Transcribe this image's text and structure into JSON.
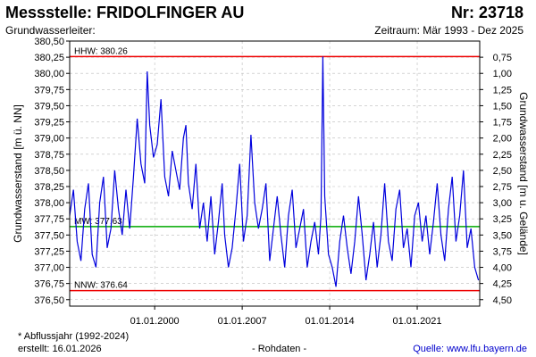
{
  "header": {
    "title": "Messstelle: FRIDOLFINGER AU",
    "nr": "Nr: 23718",
    "aquifer": "Grundwasserleiter:",
    "period": "Zeitraum: Mär 1993 - Dez 2025"
  },
  "footer": {
    "note": "* Abflussjahr (1992-2024)",
    "created": "erstellt:  16.01.2026",
    "raw": "- Rohdaten -",
    "source_label": "Quelle:",
    "source_link": "www.lfu.bayern.de"
  },
  "colors": {
    "series": "#0000dd",
    "hhw": "#ee0000",
    "mw": "#00aa00",
    "nnw": "#ee0000",
    "grid": "#bbbbbb"
  },
  "chart_data": {
    "type": "line",
    "title": "",
    "ylabel": "Grundwasserstand [m ü. NN]",
    "y2label": "Grundwasserstand [m u. Gelände]",
    "ylim": [
      376.4,
      380.5
    ],
    "xlim": [
      1993.2,
      2026.0
    ],
    "grid": true,
    "yticks": [
      376.5,
      376.75,
      377.0,
      377.25,
      377.5,
      377.75,
      378.0,
      378.25,
      378.5,
      378.75,
      379.0,
      379.25,
      379.5,
      379.75,
      380.0,
      380.25,
      380.5
    ],
    "ytick_labels": [
      "376,50",
      "376,75",
      "377,00",
      "377,25",
      "377,50",
      "377,75",
      "378,00",
      "378,25",
      "378,50",
      "378,75",
      "379,00",
      "379,25",
      "379,50",
      "379,75",
      "380,00",
      "380,25",
      "380,50"
    ],
    "y2ticks": [
      4.5,
      4.25,
      4.0,
      3.75,
      3.5,
      3.25,
      3.0,
      2.75,
      2.5,
      2.25,
      2.0,
      1.75,
      1.5,
      1.25,
      1.0,
      0.75
    ],
    "y2tick_labels": [
      "4,50",
      "4,25",
      "4,00",
      "3,75",
      "3,50",
      "3,25",
      "3,00",
      "2,75",
      "2,50",
      "2,25",
      "2,00",
      "1,75",
      "1,50",
      "1,25",
      "1,00",
      "0,75"
    ],
    "y2_offset": 381.0,
    "xticks": [
      2000.0,
      2007.0,
      2014.0,
      2021.0
    ],
    "xtick_labels": [
      "01.01.2000",
      "01.01.2007",
      "01.01.2014",
      "01.01.2021"
    ],
    "reference_lines": [
      {
        "name": "HHW",
        "label": "HHW: 380.26",
        "value": 380.26
      },
      {
        "name": "MW",
        "label": "MW: 377.63",
        "value": 377.63
      },
      {
        "name": "NNW",
        "label": "NNW: 376.64",
        "value": 376.64
      }
    ],
    "series": [
      {
        "x": [
          1993.2,
          1993.5,
          1993.8,
          1994.1,
          1994.4,
          1994.7,
          1995.0,
          1995.3,
          1995.6,
          1995.9,
          1996.2,
          1996.5,
          1996.8,
          1997.1,
          1997.4,
          1997.7,
          1998.0,
          1998.3,
          1998.6,
          1998.9,
          1999.2,
          1999.4,
          1999.6,
          1999.9,
          2000.2,
          2000.5,
          2000.8,
          2001.1,
          2001.4,
          2001.7,
          2002.0,
          2002.3,
          2002.5,
          2002.7,
          2003.0,
          2003.3,
          2003.6,
          2003.9,
          2004.2,
          2004.5,
          2004.8,
          2005.1,
          2005.4,
          2005.6,
          2005.9,
          2006.2,
          2006.5,
          2006.8,
          2007.1,
          2007.4,
          2007.7,
          2008.0,
          2008.3,
          2008.6,
          2008.9,
          2009.2,
          2009.5,
          2009.8,
          2010.1,
          2010.4,
          2010.7,
          2011.0,
          2011.3,
          2011.6,
          2011.9,
          2012.2,
          2012.5,
          2012.8,
          2013.1,
          2013.3,
          2013.45,
          2013.6,
          2013.9,
          2014.2,
          2014.5,
          2014.8,
          2015.1,
          2015.4,
          2015.7,
          2016.0,
          2016.3,
          2016.6,
          2016.9,
          2017.2,
          2017.5,
          2017.8,
          2018.1,
          2018.4,
          2018.7,
          2019.0,
          2019.3,
          2019.6,
          2019.9,
          2020.2,
          2020.5,
          2020.8,
          2021.1,
          2021.4,
          2021.7,
          2022.0,
          2022.3,
          2022.6,
          2022.9,
          2023.2,
          2023.5,
          2023.8,
          2024.1,
          2024.4,
          2024.7,
          2025.0,
          2025.3,
          2025.6,
          2025.9
        ],
        "y": [
          377.8,
          378.2,
          377.4,
          377.1,
          377.9,
          378.3,
          377.2,
          377.0,
          378.0,
          378.4,
          377.3,
          377.6,
          378.5,
          377.9,
          377.5,
          378.2,
          377.6,
          378.4,
          379.3,
          378.6,
          378.3,
          380.03,
          379.2,
          378.7,
          378.9,
          379.6,
          378.4,
          378.1,
          378.8,
          378.5,
          378.2,
          379.0,
          379.2,
          378.3,
          377.9,
          378.6,
          377.6,
          378.0,
          377.4,
          378.1,
          377.2,
          377.7,
          378.3,
          377.5,
          377.0,
          377.3,
          377.9,
          378.6,
          377.4,
          377.8,
          379.05,
          378.0,
          377.6,
          377.9,
          378.3,
          377.1,
          377.6,
          378.1,
          377.5,
          377.0,
          377.8,
          378.2,
          377.3,
          377.6,
          377.9,
          377.0,
          377.4,
          377.7,
          377.2,
          377.8,
          380.26,
          378.1,
          377.2,
          377.0,
          376.7,
          377.4,
          377.8,
          377.3,
          376.9,
          377.4,
          378.1,
          377.5,
          376.8,
          377.2,
          377.7,
          377.0,
          377.5,
          378.3,
          377.4,
          377.1,
          377.9,
          378.2,
          377.3,
          377.6,
          377.0,
          377.8,
          378.0,
          377.4,
          377.8,
          377.2,
          377.7,
          378.3,
          377.5,
          377.1,
          377.9,
          378.4,
          377.4,
          377.8,
          378.5,
          377.3,
          377.6,
          377.0,
          376.8
        ]
      }
    ]
  }
}
